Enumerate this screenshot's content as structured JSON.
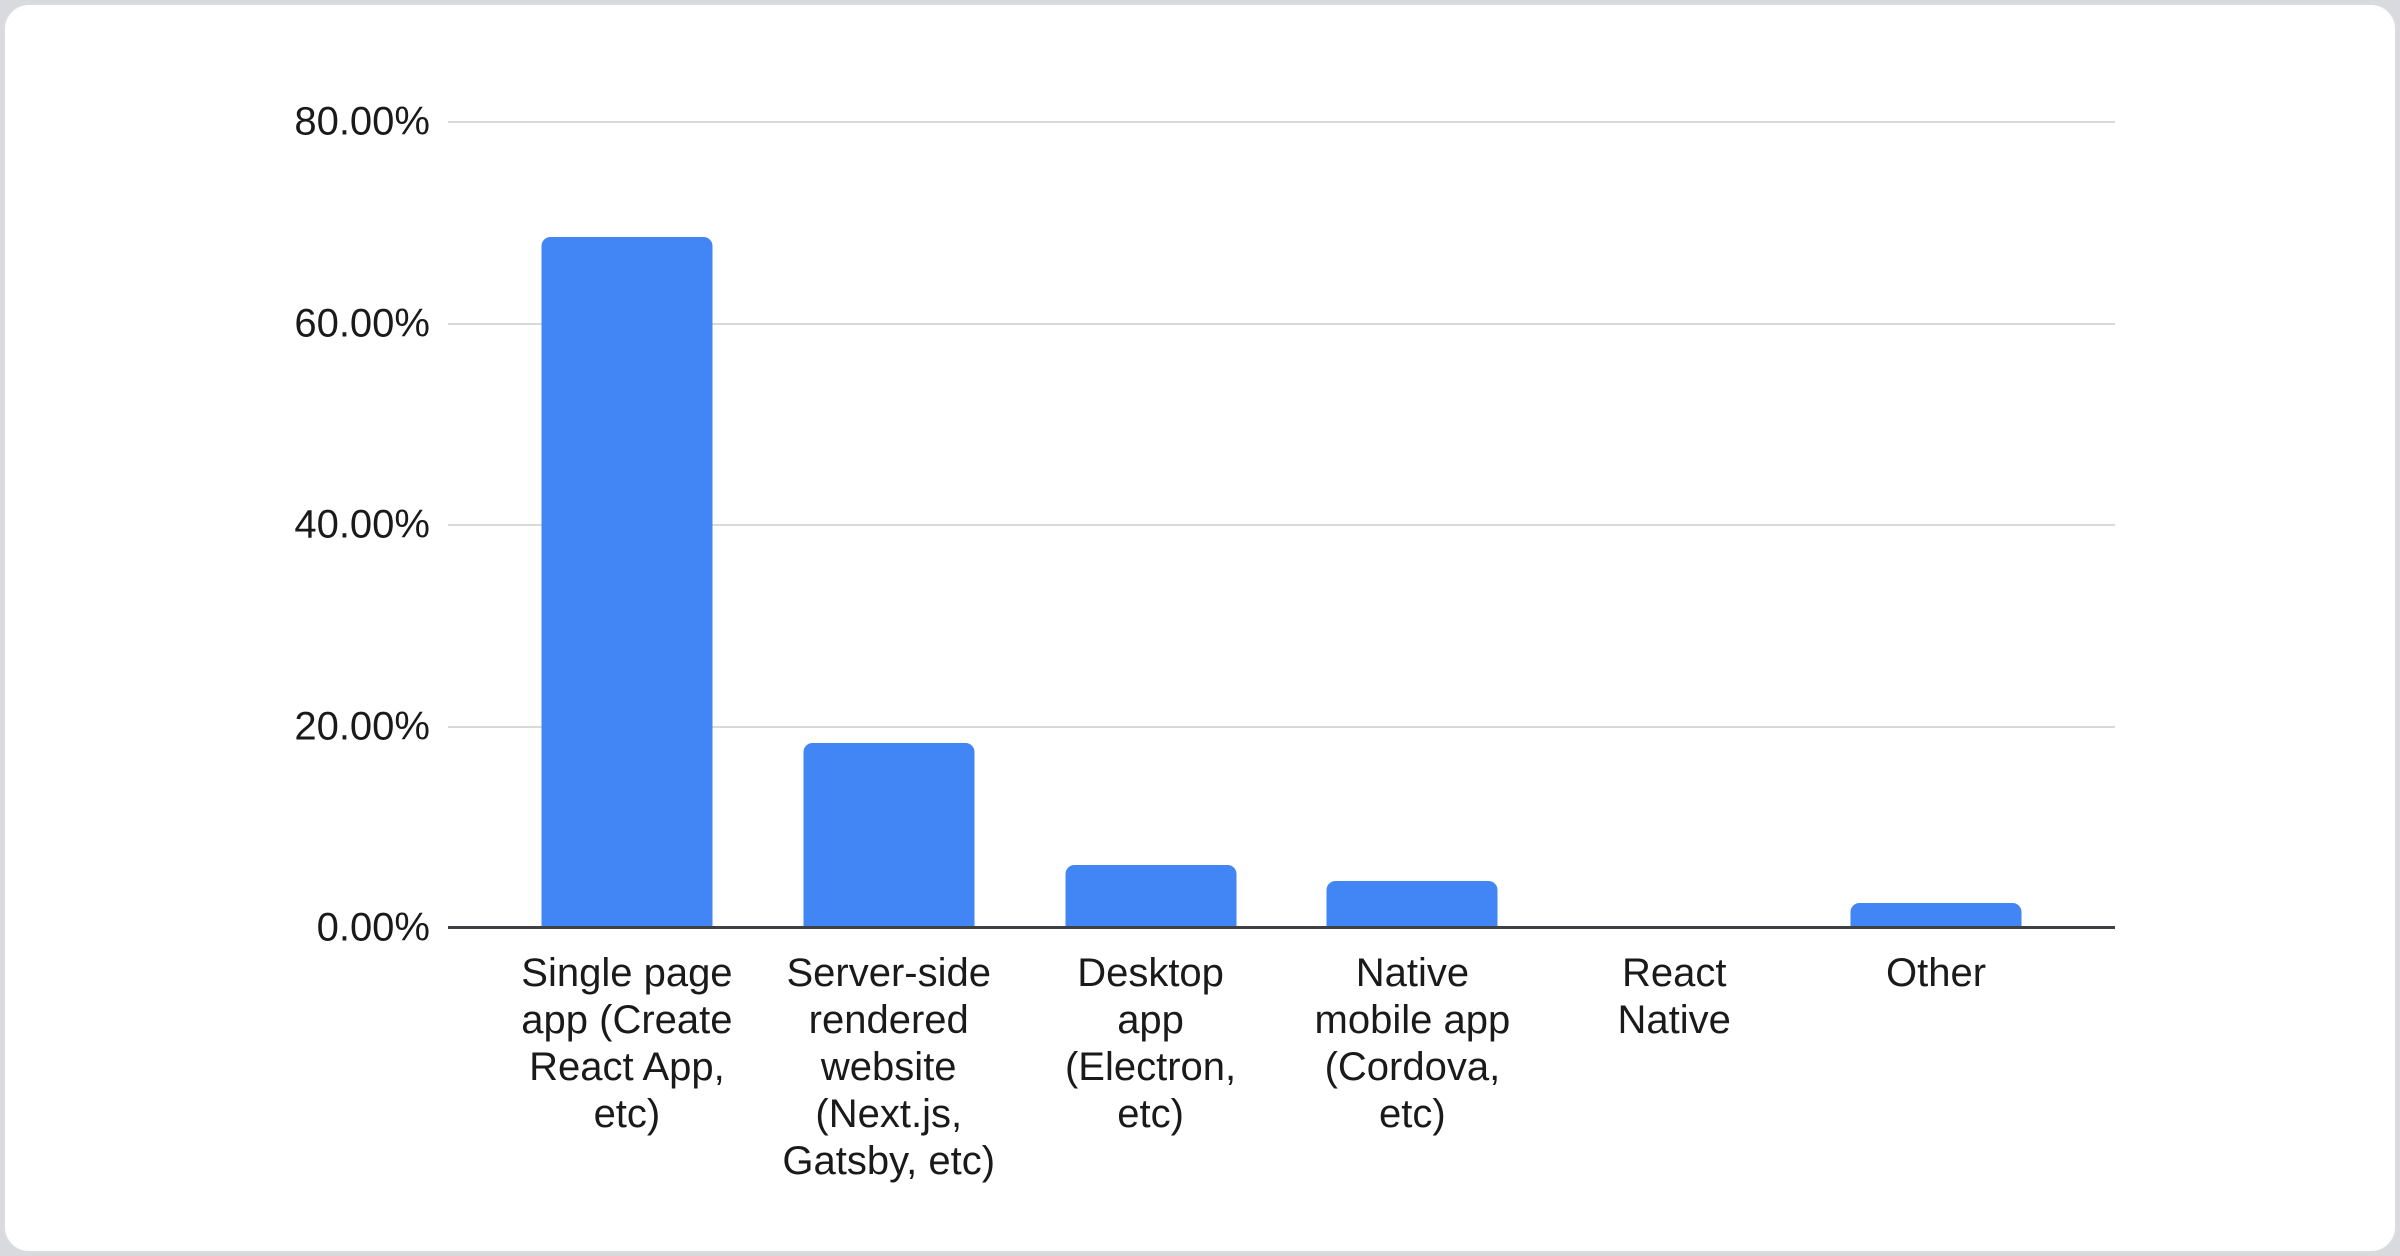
{
  "chart_data": {
    "type": "bar",
    "title": "",
    "categories": [
      "Single page app (Create React App, etc)",
      "Server-side rendered website (Next.js, Gatsby, etc)",
      "Desktop app (Electron, etc)",
      "Native mobile app (Cordova, etc)",
      "React Native",
      "Other"
    ],
    "category_lines": [
      [
        "Single page",
        "app (Create",
        "React App,",
        "etc)"
      ],
      [
        "Server-side",
        "rendered",
        "website",
        "(Next.js,",
        "Gatsby, etc)"
      ],
      [
        "Desktop",
        "app",
        "(Electron,",
        "etc)"
      ],
      [
        "Native",
        "mobile app",
        "(Cordova,",
        "etc)"
      ],
      [
        "React",
        "Native"
      ],
      [
        "Other"
      ]
    ],
    "values": [
      68.6,
      18.4,
      6.3,
      4.7,
      0,
      2.5
    ],
    "value_unit": "percent",
    "xlabel": "",
    "ylabel": "",
    "ylim": [
      0,
      80
    ],
    "y_ticks": [
      {
        "value": 0,
        "label": "0.00%"
      },
      {
        "value": 20,
        "label": "20.00%"
      },
      {
        "value": 40,
        "label": "40.00%"
      },
      {
        "value": 60,
        "label": "60.00%"
      },
      {
        "value": 80,
        "label": "80.00%"
      }
    ],
    "grid": true,
    "legend": "none",
    "colors": {
      "bar": "#4285F4",
      "gridline": "#d9d9d9",
      "axis_line": "#3e4043",
      "label_text": "#1a1a1a",
      "card_background": "#ffffff",
      "card_border": "#dadce0",
      "page_background": "#d8dadd"
    }
  }
}
